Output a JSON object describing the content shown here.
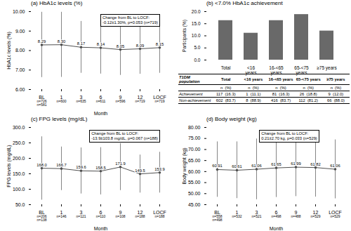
{
  "chart_data": [
    {
      "type": "line",
      "title": "(a) HbA1c levels (%)",
      "xlabel": "Month",
      "ylabel": "HbA1c levels (%)",
      "categories": [
        "BL",
        "1",
        "3",
        "6",
        "9",
        "12",
        "LOCF"
      ],
      "values": [
        8.29,
        8.3,
        8.17,
        8.14,
        8.05,
        8.09,
        8.15
      ],
      "value_labels": [
        "8.29",
        "8.30",
        "8.17",
        "8.14",
        "8.05",
        "8.09",
        "8.15"
      ],
      "errors_upper": [
        9.97,
        9.97,
        9.5,
        9.47,
        9.38,
        9.4,
        9.47
      ],
      "errors_lower": [
        6.62,
        6.63,
        6.84,
        6.8,
        6.73,
        6.79,
        6.84
      ],
      "n_labels": [
        "n=726  n=581",
        "n=600",
        "n=635",
        "n=611",
        "n=596",
        "n=719",
        "n=719"
      ],
      "annotation": "Change from BL to LOCF:\n-0.12±1.30%, p=0.053 (n=719)",
      "color": "#505050",
      "marker": "o",
      "data_labels": true,
      "ylim": [
        6.0,
        10.0
      ],
      "yticks": [
        {
          "value": 6,
          "label": "6.00"
        },
        {
          "value": 7,
          "label": "7.00"
        },
        {
          "value": 8,
          "label": "8.00"
        },
        {
          "value": 9,
          "label": "9.00"
        },
        {
          "value": 10,
          "label": "10.00"
        }
      ]
    },
    {
      "type": "bar",
      "title": "(b) <7.0% HbA1c achievement",
      "ylabel": "Participants (%)",
      "categories": [
        "Total",
        "<16\nyears",
        "16-<65\nyears",
        "65-<75\nyears",
        "≥75 years"
      ],
      "values": [
        16.3,
        11.1,
        16.3,
        18.8,
        12.0
      ],
      "color": "#696969",
      "ylim": [
        0,
        20.0
      ],
      "yticks": [
        {
          "value": 0,
          "label": "0.0"
        },
        {
          "value": 5,
          "label": "5.0"
        },
        {
          "value": 10,
          "label": "10.0"
        },
        {
          "value": 15,
          "label": "15.0"
        },
        {
          "value": 20,
          "label": "20.0"
        }
      ],
      "table": {
        "corner_label": "T1DM population",
        "col_headers": [
          "Total",
          "<16 years",
          "16-<65 years",
          "65-<75 years",
          "≥75 years"
        ],
        "col_subheaders": [
          "n  (%)",
          "n  (%)",
          "n  (%)",
          "n  (%)",
          "n  (%)"
        ],
        "rows": [
          {
            "label": "Achievement",
            "values": [
              "117  (16.3)",
              "1  (11.1)",
              "81  (16.3)",
              "26  (18.8)",
              "9  (12.0)"
            ]
          },
          {
            "label": "Non-achievement",
            "values": [
              "602  (83.7)",
              "8  (88.9)",
              "416  (83.7)",
              "112  (81.2)",
              "66  (88.0)"
            ]
          }
        ]
      }
    },
    {
      "type": "line",
      "title": "(c) FPG levels (mg/dL)",
      "xlabel": "Month",
      "ylabel": "FPG levels (mg/dL)",
      "categories": [
        "BL",
        "1",
        "3",
        "6",
        "9",
        "12",
        "LOCF"
      ],
      "values": [
        168.0,
        166.7,
        159.6,
        158.5,
        171.9,
        149.5,
        153.9
      ],
      "value_labels": [
        "168.0",
        "166.7",
        "159.6",
        "158.5",
        "171.9",
        "149.5",
        "153.9"
      ],
      "errors_upper": [
        270.0,
        237.0,
        234.0,
        235.0,
        248.0,
        211.0,
        220.0
      ],
      "errors_lower": [
        65.0,
        96.0,
        85.0,
        82.0,
        96.0,
        88.0,
        88.0
      ],
      "n_labels": [
        "n=206  n=138",
        "n=146",
        "n=121",
        "n=110",
        "n=108",
        "n=188",
        "n=188"
      ],
      "annotation": "Change from BL to LOCF:\n-13.9±103.8 mg/dL, p=0.067 (n=188)",
      "color": "#505050",
      "marker": "o",
      "data_labels": true,
      "ylim": [
        50.0,
        300.0
      ],
      "yticks": [
        {
          "value": 50,
          "label": "50.0"
        },
        {
          "value": 100,
          "label": "100.0"
        },
        {
          "value": 150,
          "label": "150.0"
        },
        {
          "value": 200,
          "label": "200.0"
        },
        {
          "value": 250,
          "label": "250.0"
        },
        {
          "value": 300,
          "label": "300.0"
        }
      ]
    },
    {
      "type": "line",
      "title": "(d) Body weight (kg)",
      "xlabel": "Month",
      "ylabel": "Body weight (kg)",
      "categories": [
        "BL",
        "1",
        "3",
        "6",
        "9",
        "12",
        "LOCF"
      ],
      "values": [
        60.91,
        60.61,
        61.06,
        61.65,
        61.99,
        61.82,
        61.06
      ],
      "errors_upper": [
        73.5,
        73.5,
        74.8,
        75.0,
        75.3,
        75.1,
        74.4
      ],
      "errors_lower": [
        48.4,
        47.8,
        47.3,
        48.3,
        48.7,
        48.5,
        47.7
      ],
      "n_labels": [
        "n=558  n=498",
        "n=532",
        "n=521",
        "n=498",
        "n=488",
        "n=529",
        "n=529"
      ],
      "annotation": "Change from BL to LOCF:\n0.21±2.70 kg, p=0.033 (n=529)",
      "color": "#505050",
      "marker": "o",
      "data_labels": true,
      "ylim": [
        45.0,
        80.0
      ],
      "yticks": [
        {
          "value": 45,
          "label": "45.00"
        },
        {
          "value": 50,
          "label": "50.00"
        },
        {
          "value": 55,
          "label": "55.00"
        },
        {
          "value": 60,
          "label": "60.00"
        },
        {
          "value": 65,
          "label": "65.00"
        },
        {
          "value": 70,
          "label": "70.00"
        },
        {
          "value": 75,
          "label": "75.00"
        },
        {
          "value": 80,
          "label": "80.00"
        }
      ]
    }
  ]
}
